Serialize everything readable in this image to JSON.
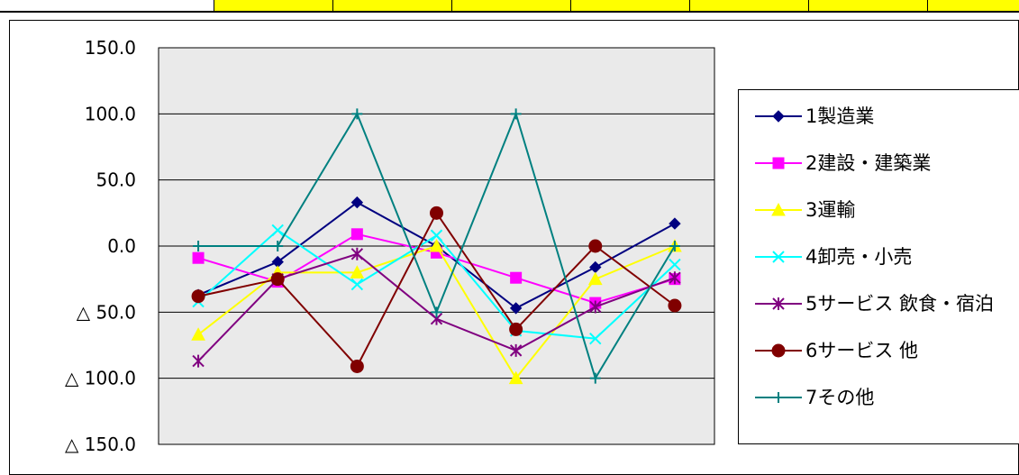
{
  "page": {
    "top_strip_color": "#ffff00",
    "border_color": "#000000"
  },
  "chart_data": {
    "type": "line",
    "title": "",
    "xlabel": "",
    "ylabel": "",
    "x": [
      1,
      2,
      3,
      4,
      5,
      6,
      7
    ],
    "ylim": [
      -150,
      150
    ],
    "yticks": [
      150,
      100,
      50,
      0,
      -50,
      -100,
      -150
    ],
    "ytick_labels": [
      "150.0",
      "100.0",
      "50.0",
      "0.0",
      "△ 50.0",
      "△ 100.0",
      "△ 150.0"
    ],
    "grid": true,
    "plot_background": "#eaeaea",
    "legend_position": "right",
    "series": [
      {
        "name": "1製造業",
        "color": "#000080",
        "marker": "diamond",
        "values": [
          -37,
          -12,
          33,
          0,
          -47,
          -16,
          17
        ]
      },
      {
        "name": "2建設・建築業",
        "color": "#ff00ff",
        "marker": "square",
        "values": [
          -9,
          -27,
          9,
          -5,
          -24,
          -43,
          -25
        ]
      },
      {
        "name": "3運輸",
        "color": "#ffff00",
        "marker": "triangle",
        "values": [
          -67,
          -20,
          -20,
          0,
          -100,
          -25,
          0
        ]
      },
      {
        "name": "4卸売・小売",
        "color": "#00ffff",
        "marker": "x",
        "values": [
          -42,
          12,
          -29,
          8,
          -64,
          -70,
          -14
        ]
      },
      {
        "name": "5サービス 飲食・宿泊",
        "color": "#800080",
        "marker": "star",
        "values": [
          -87,
          -25,
          -6,
          -55,
          -79,
          -46,
          -24
        ]
      },
      {
        "name": "6サービス 他",
        "color": "#800000",
        "marker": "circle",
        "values": [
          -38,
          -25,
          -91,
          25,
          -63,
          0,
          -45
        ]
      },
      {
        "name": "7その他",
        "color": "#008080",
        "marker": "plus",
        "values": [
          0,
          0,
          100,
          -50,
          100,
          -100,
          0
        ]
      }
    ]
  }
}
